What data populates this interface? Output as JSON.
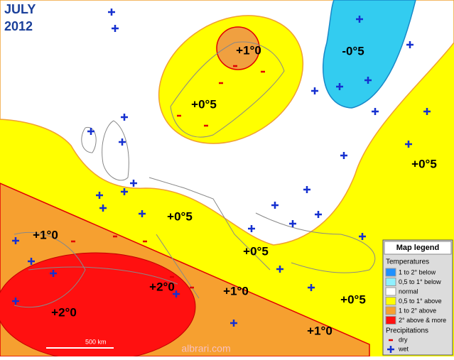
{
  "title": {
    "month": "JULY",
    "year": "2012"
  },
  "anomaly_labels": [
    "+1°0",
    "-0°5",
    "+0°5",
    "+0°5",
    "+0°5",
    "+1°0",
    "+0°5",
    "+2°0",
    "+1°0",
    "+2°0",
    "+0°5",
    "+1°0"
  ],
  "legend": {
    "title": "Map legend",
    "temperatures": {
      "heading": "Temperatures",
      "items": [
        {
          "label": "1 to 2° below",
          "color": "#1e90ff"
        },
        {
          "label": "0,5 to 1° below",
          "color": "#8ff0ff"
        },
        {
          "label": "normal",
          "color": "#ffffff"
        },
        {
          "label": "0,5 to 1° above",
          "color": "#ffff00"
        },
        {
          "label": "1 to 2° above",
          "color": "#f6a030"
        },
        {
          "label": "2° above & more",
          "color": "#ff1010"
        }
      ]
    },
    "precipitations": {
      "heading": "Precipitations",
      "items": [
        "dry",
        "wet"
      ]
    }
  },
  "scale": "500 km",
  "watermark": "albrari.com"
}
